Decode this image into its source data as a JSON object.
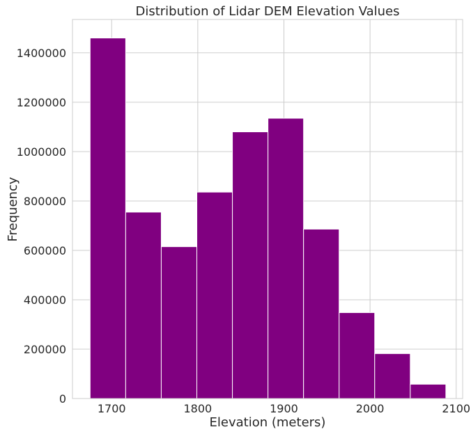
{
  "chart_data": {
    "type": "bar",
    "title": "Distribution of Lidar DEM Elevation Values",
    "xlabel": "Elevation (meters)",
    "ylabel": "Frequency",
    "xlim": [
      1654.5,
      2107.5
    ],
    "ylim": [
      0,
      1535000
    ],
    "xticks": [
      1700,
      1800,
      1900,
      2000,
      2100
    ],
    "yticks": [
      0,
      200000,
      400000,
      600000,
      800000,
      1000000,
      1200000,
      1400000
    ],
    "grid": true,
    "bar_color": "#800080",
    "bins": [
      {
        "x0": 1675.0,
        "x1": 1716.3,
        "value": 1460000
      },
      {
        "x0": 1716.3,
        "x1": 1757.6,
        "value": 755000
      },
      {
        "x0": 1757.6,
        "x1": 1798.9,
        "value": 615000
      },
      {
        "x0": 1798.9,
        "x1": 1840.2,
        "value": 836000
      },
      {
        "x0": 1840.2,
        "x1": 1881.5,
        "value": 1080000
      },
      {
        "x0": 1881.5,
        "x1": 1922.8,
        "value": 1135000
      },
      {
        "x0": 1922.8,
        "x1": 1964.1,
        "value": 686000
      },
      {
        "x0": 1964.1,
        "x1": 2005.4,
        "value": 348000
      },
      {
        "x0": 2005.4,
        "x1": 2046.7,
        "value": 182000
      },
      {
        "x0": 2046.7,
        "x1": 2088.0,
        "value": 58000
      }
    ]
  }
}
